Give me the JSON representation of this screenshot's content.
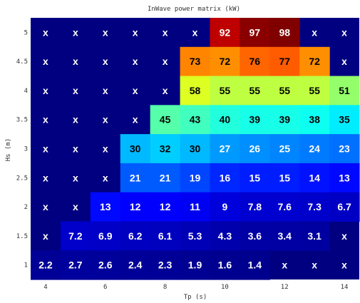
{
  "chart_data": {
    "type": "heatmap",
    "title": "InWave power matrix (kW)",
    "xlabel": "Tp (s)",
    "ylabel": "Hs (m)",
    "x": [
      4,
      5,
      6,
      7,
      8,
      9,
      10,
      11,
      12,
      13,
      14
    ],
    "y": [
      5,
      4.5,
      4,
      3.5,
      3,
      2.5,
      2,
      1.5,
      1
    ],
    "x_ticks": [
      "4",
      "6",
      "8",
      "10",
      "12",
      "14"
    ],
    "y_ticks": [
      "5",
      "4.5",
      "4",
      "3.5",
      "3",
      "2.5",
      "2",
      "1.5",
      "1"
    ],
    "missing_label": "x",
    "rows": [
      [
        "x",
        "x",
        "x",
        "x",
        "x",
        "x",
        "92",
        "97",
        "98",
        "x",
        "x"
      ],
      [
        "x",
        "x",
        "x",
        "x",
        "x",
        "73",
        "72",
        "76",
        "77",
        "72",
        "x"
      ],
      [
        "x",
        "x",
        "x",
        "x",
        "x",
        "58",
        "55",
        "55",
        "55",
        "55",
        "51"
      ],
      [
        "x",
        "x",
        "x",
        "x",
        "45",
        "43",
        "40",
        "39",
        "39",
        "38",
        "35"
      ],
      [
        "x",
        "x",
        "x",
        "30",
        "32",
        "30",
        "27",
        "26",
        "25",
        "24",
        "23"
      ],
      [
        "x",
        "x",
        "x",
        "21",
        "21",
        "19",
        "16",
        "15",
        "15",
        "14",
        "13"
      ],
      [
        "x",
        "x",
        "13",
        "12",
        "12",
        "11",
        "9",
        "7.8",
        "7.6",
        "7.3",
        "6.7"
      ],
      [
        "x",
        "7.2",
        "6.9",
        "6.2",
        "6.1",
        "5.3",
        "4.3",
        "3.6",
        "3.4",
        "3.1",
        "x"
      ],
      [
        "2.2",
        "2.7",
        "2.6",
        "2.4",
        "2.3",
        "1.9",
        "1.6",
        "1.4",
        "x",
        "x",
        "x"
      ]
    ],
    "value_range": [
      0,
      98
    ],
    "colormap": "jet",
    "grid": false,
    "background_color": "#000080"
  }
}
